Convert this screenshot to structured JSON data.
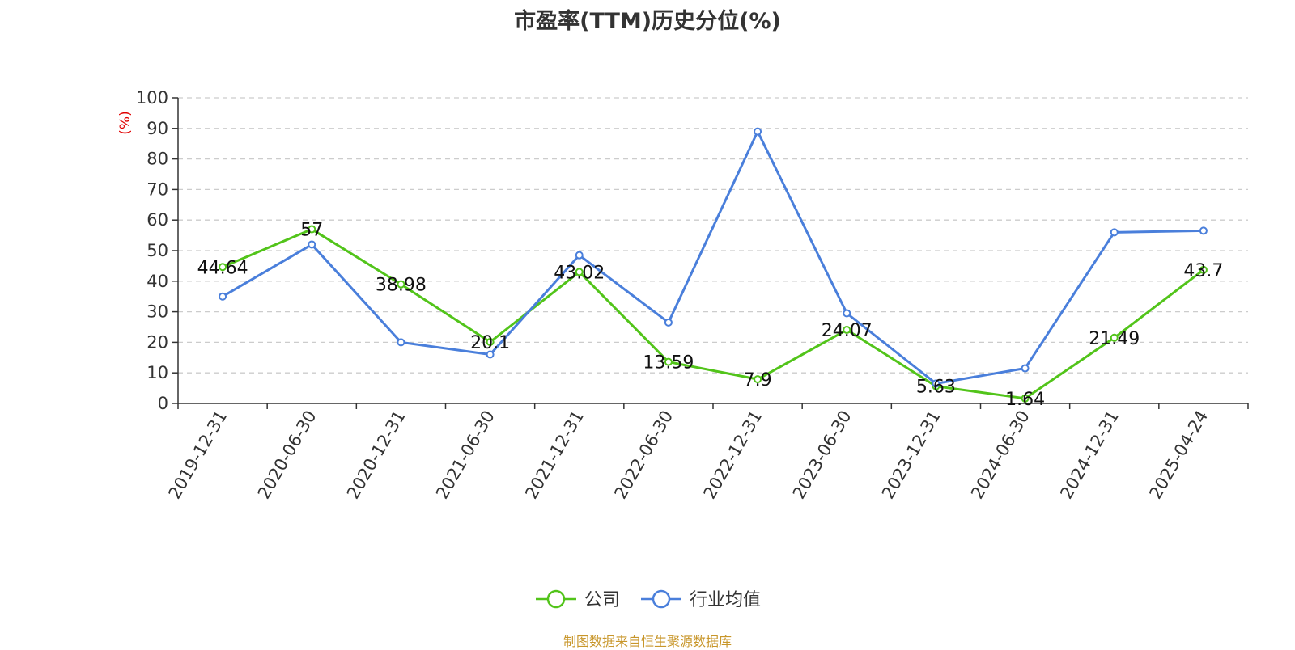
{
  "chart_data": {
    "type": "line",
    "title": "市盈率(TTM)历史分位(%)",
    "ylabel": "(%)",
    "xlabel": "",
    "ylim": [
      0,
      100
    ],
    "yticks": [
      0,
      10,
      20,
      30,
      40,
      50,
      60,
      70,
      80,
      90,
      100
    ],
    "grid": true,
    "legend_position": "bottom-center",
    "categories": [
      "2019-12-31",
      "2020-06-30",
      "2020-12-31",
      "2021-06-30",
      "2021-12-31",
      "2022-06-30",
      "2022-12-31",
      "2023-06-30",
      "2023-12-31",
      "2024-06-30",
      "2024-12-31",
      "2025-04-24"
    ],
    "series": [
      {
        "name": "公司",
        "color": "#52c41a",
        "values": [
          44.64,
          57,
          38.98,
          20.1,
          43.02,
          13.59,
          7.9,
          24.07,
          5.63,
          1.64,
          21.49,
          43.7
        ],
        "labels": [
          "44.64",
          "57",
          "38.98",
          "20.1",
          "43.02",
          "13.59",
          "7.9",
          "24.07",
          "5.63",
          "1.64",
          "21.49",
          "43.7"
        ]
      },
      {
        "name": "行业均值",
        "color": "#4a7fdb",
        "values": [
          35,
          52,
          20,
          16,
          48.5,
          26.5,
          89,
          29.5,
          6.5,
          11.5,
          56,
          56.5
        ]
      }
    ]
  },
  "source": "制图数据来自恒生聚源数据库"
}
